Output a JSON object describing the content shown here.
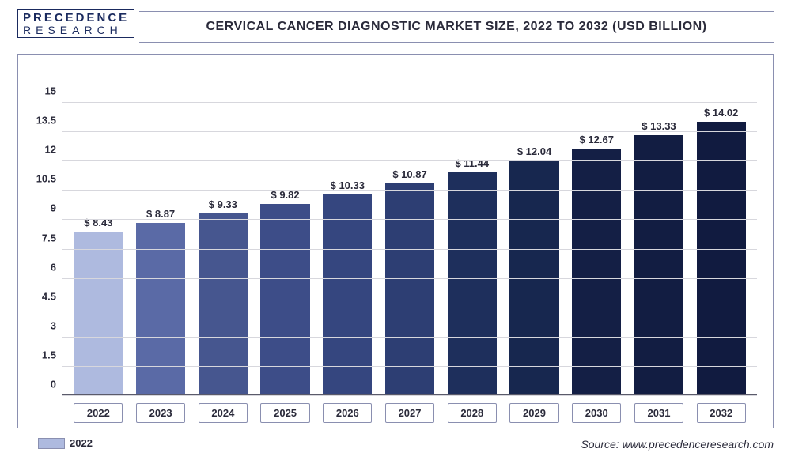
{
  "logo": {
    "line1": "PRECEDENCE",
    "line2": "RESEARCH"
  },
  "title": "CERVICAL CANCER DIAGNOSTIC MARKET SIZE, 2022 TO 2032 (USD BILLION)",
  "source": "Source: www.precedenceresearch.com",
  "chart": {
    "type": "bar",
    "ymax": 16.5,
    "yticks": [
      0,
      1.5,
      3,
      4.5,
      6,
      7.5,
      9,
      10.5,
      12,
      13.5,
      15
    ],
    "categories": [
      "2022",
      "2023",
      "2024",
      "2025",
      "2026",
      "2027",
      "2028",
      "2029",
      "2030",
      "2031",
      "2032"
    ],
    "values": [
      8.43,
      8.87,
      9.33,
      9.82,
      10.33,
      10.87,
      11.44,
      12.04,
      12.67,
      13.33,
      14.02
    ],
    "value_prefix": "$ ",
    "bar_colors": [
      "#aebadf",
      "#5a6aa6",
      "#46568f",
      "#3d4d88",
      "#35467f",
      "#2d3e73",
      "#1e2f5c",
      "#17274f",
      "#141f45",
      "#121d42",
      "#111b40"
    ],
    "grid_color": "#d7d7dd",
    "axis_color": "#5a5a6a",
    "legend_year": "2022",
    "legend_swatch": "#aebadf",
    "tick_fontsize": 13,
    "label_fontsize": 13,
    "title_fontsize": 16
  }
}
